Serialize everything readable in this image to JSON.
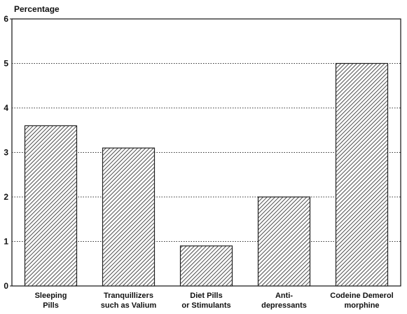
{
  "chart_data": {
    "type": "bar",
    "y_axis_label": "Percentage",
    "categories": [
      "Sleeping\nPills",
      "Tranquillizers\nsuch as Valium",
      "Diet Pills\nor Stimulants",
      "Anti-\ndepressants",
      "Codeine Demerol\nmorphine"
    ],
    "values": [
      3.6,
      3.1,
      0.9,
      2,
      5
    ],
    "color": "#222222",
    "ylim": [
      0,
      6
    ],
    "yticks": [
      0,
      1,
      2,
      3,
      4,
      5,
      6
    ],
    "grid": true
  }
}
